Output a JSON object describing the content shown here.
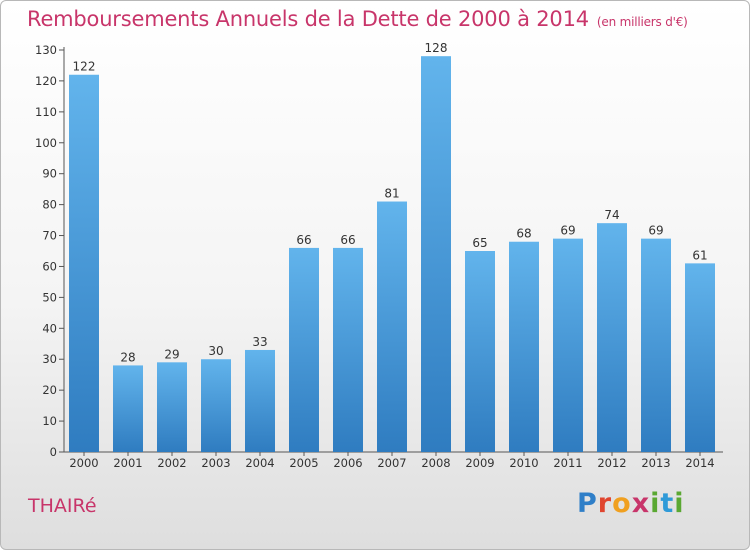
{
  "title": "Remboursements Annuels de la Dette de 2000 à 2014",
  "subtitle": "(en milliers d'€)",
  "commune": "THAIRé",
  "logo": [
    "P",
    "r",
    "o",
    "x",
    "i",
    "t",
    "i"
  ],
  "colors": {
    "bar_light": "#62b4ec",
    "bar_dark": "#2f7cc0",
    "title": "#c8356a"
  },
  "chart_data": {
    "type": "bar",
    "title": "Remboursements Annuels de la Dette de 2000 à 2014",
    "subtitle": "(en milliers d'€)",
    "categories": [
      "2000",
      "2001",
      "2002",
      "2003",
      "2004",
      "2005",
      "2006",
      "2007",
      "2008",
      "2009",
      "2010",
      "2011",
      "2012",
      "2013",
      "2014"
    ],
    "values": [
      122,
      28,
      29,
      30,
      33,
      66,
      66,
      81,
      128,
      65,
      68,
      69,
      74,
      69,
      61
    ],
    "xlabel": "",
    "ylabel": "",
    "ylim": [
      0,
      130
    ],
    "yticks": [
      0,
      10,
      20,
      30,
      40,
      50,
      60,
      70,
      80,
      90,
      100,
      110,
      120,
      130
    ],
    "grid": false,
    "legend": "none"
  }
}
